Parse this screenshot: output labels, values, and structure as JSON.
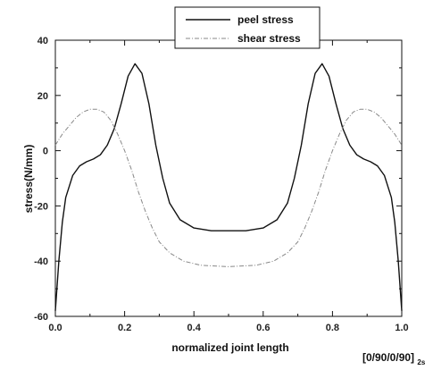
{
  "chart_data": {
    "type": "line",
    "xlabel": "normalized joint length",
    "ylabel": "stress(N/mm)",
    "xlim": [
      0.0,
      1.0
    ],
    "ylim": [
      -60,
      40
    ],
    "x_ticks": [
      "0.0",
      "0.2",
      "0.4",
      "0.6",
      "0.8",
      "1.0"
    ],
    "y_ticks": [
      "40",
      "20",
      "0",
      "-20",
      "-40",
      "-60"
    ],
    "annotation": "[0/90/0/90]",
    "annotation_sub": "2s",
    "legend_position": "top-center",
    "grid": false,
    "series": [
      {
        "name": "peel stress",
        "color": "#111111",
        "style": "solid",
        "x": [
          0.0,
          0.01,
          0.02,
          0.03,
          0.05,
          0.07,
          0.09,
          0.11,
          0.13,
          0.15,
          0.17,
          0.19,
          0.21,
          0.23,
          0.25,
          0.27,
          0.29,
          0.31,
          0.33,
          0.36,
          0.4,
          0.45,
          0.5,
          0.55,
          0.6,
          0.64,
          0.67,
          0.69,
          0.71,
          0.73,
          0.75,
          0.77,
          0.79,
          0.81,
          0.83,
          0.85,
          0.87,
          0.89,
          0.91,
          0.93,
          0.95,
          0.97,
          0.98,
          0.99,
          1.0
        ],
        "y": [
          -58,
          -40,
          -26,
          -17,
          -9,
          -5.5,
          -4,
          -3,
          -1.5,
          2,
          8,
          17,
          27,
          31.5,
          28,
          17,
          2,
          -10,
          -19,
          -25,
          -28,
          -29,
          -29,
          -29,
          -28,
          -25,
          -19,
          -10,
          2,
          17,
          28,
          31.5,
          27,
          17,
          8,
          2,
          -1.5,
          -3,
          -4,
          -5.5,
          -9,
          -17,
          -26,
          -40,
          -58
        ]
      },
      {
        "name": "shear stress",
        "color": "#888888",
        "style": "dashed",
        "x": [
          0.0,
          0.02,
          0.04,
          0.06,
          0.08,
          0.1,
          0.12,
          0.14,
          0.16,
          0.18,
          0.2,
          0.22,
          0.24,
          0.26,
          0.28,
          0.3,
          0.33,
          0.37,
          0.42,
          0.5,
          0.58,
          0.63,
          0.67,
          0.7,
          0.72,
          0.74,
          0.76,
          0.78,
          0.8,
          0.82,
          0.84,
          0.86,
          0.88,
          0.9,
          0.92,
          0.94,
          0.96,
          0.98,
          1.0
        ],
        "y": [
          2,
          6,
          9,
          12,
          14,
          15,
          15,
          14,
          11,
          6,
          0,
          -7,
          -15,
          -22,
          -28,
          -33,
          -37,
          -40,
          -41.5,
          -42,
          -41.5,
          -40,
          -37,
          -33,
          -28,
          -22,
          -15,
          -7,
          0,
          6,
          11,
          14,
          15,
          15,
          14,
          12,
          9,
          6,
          2
        ]
      }
    ]
  }
}
